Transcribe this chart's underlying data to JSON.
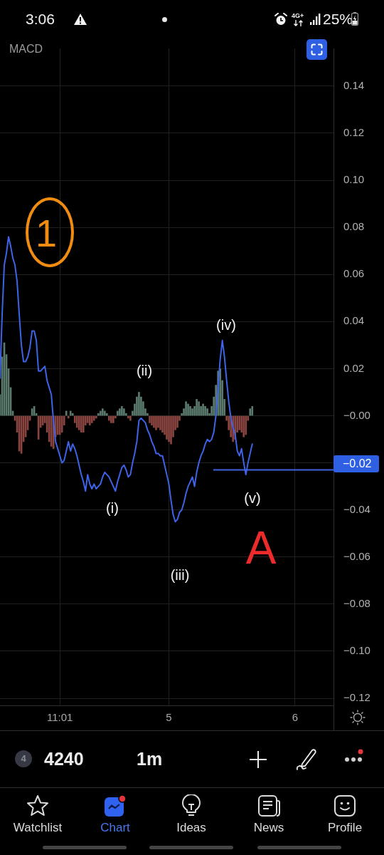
{
  "chart_data": {
    "type": "line",
    "title": "MACD",
    "categories": [
      null,
      null,
      null,
      null,
      null,
      null,
      null,
      null,
      null,
      null,
      null,
      null,
      null,
      null,
      null,
      null,
      null,
      null,
      null,
      null,
      null,
      null,
      null,
      null,
      null,
      null,
      null,
      null,
      "11:01",
      null,
      null,
      null,
      null,
      null,
      null,
      null,
      null,
      null,
      null,
      null,
      null,
      null,
      null,
      null,
      null,
      null,
      null,
      null,
      null,
      null,
      null,
      null,
      null,
      null,
      null,
      null,
      null,
      null,
      null,
      null,
      null,
      null,
      null,
      null,
      null,
      null,
      null,
      null,
      null,
      null,
      null,
      null,
      null,
      null,
      null,
      null,
      null,
      null,
      null,
      "5",
      null,
      null,
      null,
      null,
      null,
      null,
      null,
      null,
      null,
      null,
      null,
      null,
      null,
      null,
      null,
      null,
      null,
      null,
      null,
      null,
      null,
      null,
      null,
      null,
      null,
      null,
      null,
      null,
      null,
      null,
      null,
      null,
      null,
      null,
      null,
      null,
      null,
      null,
      null,
      null,
      null,
      null,
      null,
      null,
      null,
      null,
      null,
      null,
      null,
      null,
      null,
      null,
      null,
      null,
      null,
      null,
      null,
      null,
      "6",
      null,
      null,
      null,
      null,
      null,
      null,
      null,
      null,
      null,
      null,
      null,
      null,
      null,
      null,
      null,
      null,
      null,
      null
    ],
    "ylim": [
      -0.123,
      0.156
    ],
    "yticks": [
      {
        "value": 0.14,
        "label": "0.14"
      },
      {
        "value": 0.12,
        "label": "0.12"
      },
      {
        "value": 0.1,
        "label": "0.10"
      },
      {
        "value": 0.08,
        "label": "0.08"
      },
      {
        "value": 0.06,
        "label": "0.06"
      },
      {
        "value": 0.04,
        "label": "0.04"
      },
      {
        "value": 0.02,
        "label": "0.02"
      },
      {
        "value": 0,
        "label": "−0.00"
      },
      {
        "value": -0.02,
        "label": null
      },
      {
        "value": -0.04,
        "label": "−0.04"
      },
      {
        "value": -0.06,
        "label": "−0.06"
      },
      {
        "value": -0.08,
        "label": "−0.08"
      },
      {
        "value": -0.1,
        "label": "−0.10"
      },
      {
        "value": -0.12,
        "label": "−0.12"
      }
    ],
    "grid": true,
    "marker": "none",
    "series": [
      {
        "type": "bar",
        "values": [
          0.009,
          0.025,
          0.031,
          0.026,
          0.02,
          0.012,
          0.002,
          -0.002,
          -0.007,
          -0.015,
          -0.016,
          -0.011,
          -0.009,
          -0.006,
          -0.002,
          0.003,
          0.004,
          0.001,
          -0.01,
          -0.005,
          -0.004,
          -0.003,
          -0.007,
          -0.011,
          -0.013,
          -0.014,
          -0.009,
          -0.008,
          -0.008,
          -0.007,
          -0.004,
          0.002,
          -0.001,
          0.002,
          0.001,
          -0.003,
          -0.005,
          -0.006,
          -0.007,
          -0.007,
          -0.004,
          -0.003,
          -0.004,
          -0.003,
          -0.002,
          -0.001,
          0.001,
          0.002,
          0.003,
          0.002,
          0.001,
          -0.002,
          -0.003,
          -0.003,
          -0.001,
          0.002,
          0.003,
          0.004,
          0.003,
          0.001,
          -0.001,
          -0.002,
          0.002,
          0.005,
          0.008,
          0.01,
          0.008,
          0.006,
          0.003,
          0.001,
          -0.003,
          -0.004,
          -0.005,
          -0.006,
          -0.005,
          -0.006,
          -0.007,
          -0.008,
          -0.01,
          -0.011,
          -0.012,
          -0.009,
          -0.006,
          -0.005,
          -0.002,
          0.001,
          0.003,
          0.006,
          0.005,
          0.004,
          0.003,
          0.004,
          0.007,
          0.006,
          0.004,
          0.005,
          0.004,
          0.003,
          0.001,
          0.004,
          0.008,
          0.013,
          0.019,
          0.02,
          0.015,
          0.007,
          -0.002,
          -0.006,
          -0.009,
          -0.011,
          -0.01,
          -0.007,
          -0.006,
          -0.007,
          -0.009,
          -0.008,
          -0.002,
          0.003,
          0.004,
          null,
          null,
          null,
          null,
          null,
          null,
          null,
          null,
          null,
          null,
          null,
          null,
          null,
          null,
          null,
          null,
          null,
          null,
          null,
          null,
          null,
          null,
          null,
          null,
          null,
          null,
          null,
          null,
          null,
          null,
          null,
          null,
          null,
          null,
          null,
          null,
          null,
          null
        ],
        "colors": [
          "#5b7a6e",
          "#5b7a6e",
          "#5b7a6e",
          "#5b7a6e",
          "#5b7a6e",
          "#5b7a6e",
          "#5b7a6e",
          "#8a4540",
          "#8a4540",
          "#8a4540",
          "#8a4540",
          "#8a4540",
          "#8a4540",
          "#8a4540",
          "#8a4540",
          "#5b7a6e",
          "#5b7a6e",
          "#5b7a6e",
          "#8a4540",
          "#8a4540",
          "#8a4540",
          "#8a4540",
          "#8a4540",
          "#8a4540",
          "#8a4540",
          "#8a4540",
          "#8a4540",
          "#8a4540",
          "#8a4540",
          "#8a4540",
          "#8a4540",
          "#5b7a6e",
          "#8a4540",
          "#5b7a6e",
          "#5b7a6e",
          "#8a4540",
          "#8a4540",
          "#8a4540",
          "#8a4540",
          "#8a4540",
          "#8a4540",
          "#8a4540",
          "#8a4540",
          "#8a4540",
          "#8a4540",
          "#8a4540",
          "#5b7a6e",
          "#5b7a6e",
          "#5b7a6e",
          "#5b7a6e",
          "#5b7a6e",
          "#8a4540",
          "#8a4540",
          "#8a4540",
          "#8a4540",
          "#5b7a6e",
          "#5b7a6e",
          "#5b7a6e",
          "#5b7a6e",
          "#5b7a6e",
          "#8a4540",
          "#8a4540",
          "#5b7a6e",
          "#5b7a6e",
          "#5b7a6e",
          "#5b7a6e",
          "#5b7a6e",
          "#5b7a6e",
          "#5b7a6e",
          "#5b7a6e",
          "#8a4540",
          "#8a4540",
          "#8a4540",
          "#8a4540",
          "#8a4540",
          "#8a4540",
          "#8a4540",
          "#8a4540",
          "#8a4540",
          "#8a4540",
          "#8a4540",
          "#8a4540",
          "#8a4540",
          "#8a4540",
          "#8a4540",
          "#5b7a6e",
          "#5b7a6e",
          "#5b7a6e",
          "#5b7a6e",
          "#5b7a6e",
          "#5b7a6e",
          "#5b7a6e",
          "#5b7a6e",
          "#5b7a6e",
          "#5b7a6e",
          "#5b7a6e",
          "#5b7a6e",
          "#5b7a6e",
          "#5b7a6e",
          "#5b7a6e",
          "#5b7a6e",
          "#5b7a6e",
          "#5b7a6e",
          "#5b7a6e",
          "#5b7a6e",
          "#5b7a6e",
          "#8a4540",
          "#8a4540",
          "#8a4540",
          "#8a4540",
          "#8a4540",
          "#8a4540",
          "#8a4540",
          "#8a4540",
          "#8a4540",
          "#8a4540",
          "#8a4540",
          "#5b7a6e",
          "#5b7a6e",
          null,
          null,
          null,
          null,
          null,
          null,
          null,
          null,
          null,
          null,
          null,
          null,
          null,
          null,
          null,
          null,
          null,
          null,
          null,
          null,
          null,
          null,
          null,
          null,
          null,
          null,
          null,
          null,
          null,
          null,
          null,
          null,
          null,
          null,
          null,
          null,
          null,
          null
        ]
      },
      {
        "color": "#3e63e6",
        "values": [
          0.016,
          0.043,
          0.064,
          0.069,
          0.076,
          0.072,
          0.067,
          0.064,
          0.057,
          0.043,
          0.03,
          0.023,
          0.023,
          0.025,
          0.029,
          0.036,
          0.036,
          0.032,
          0.019,
          0.019,
          0.02,
          0.021,
          0.015,
          0.012,
          0.009,
          -0.002,
          -0.011,
          -0.014,
          -0.017,
          -0.02,
          -0.019,
          -0.015,
          -0.011,
          -0.015,
          -0.012,
          -0.014,
          -0.017,
          -0.021,
          -0.025,
          -0.028,
          -0.032,
          -0.025,
          -0.029,
          -0.031,
          -0.029,
          -0.031,
          -0.03,
          -0.029,
          -0.026,
          -0.024,
          -0.025,
          -0.026,
          -0.028,
          -0.03,
          -0.032,
          -0.028,
          -0.025,
          -0.022,
          -0.021,
          -0.023,
          -0.026,
          -0.025,
          -0.02,
          -0.016,
          -0.011,
          -0.002,
          -0.001,
          -0.002,
          -0.003,
          -0.006,
          -0.008,
          -0.011,
          -0.013,
          -0.016,
          -0.016,
          -0.017,
          -0.017,
          -0.021,
          -0.025,
          -0.029,
          -0.036,
          -0.042,
          -0.045,
          -0.044,
          -0.041,
          -0.04,
          -0.037,
          -0.033,
          -0.03,
          -0.028,
          -0.026,
          -0.03,
          -0.024,
          -0.02,
          -0.017,
          -0.015,
          -0.012,
          -0.01,
          -0.011,
          -0.01,
          -0.007,
          0.0,
          0.012,
          0.024,
          0.032,
          0.025,
          0.015,
          0.006,
          -0.001,
          -0.005,
          -0.008,
          -0.015,
          -0.017,
          -0.014,
          -0.02,
          -0.025,
          -0.02,
          -0.016,
          -0.012,
          null,
          null,
          null,
          null,
          null,
          null,
          null,
          null,
          null,
          null,
          null,
          null,
          null,
          null,
          null,
          null,
          null,
          null,
          null,
          null,
          null,
          null,
          null,
          null,
          null,
          null,
          null,
          null,
          null,
          null,
          null,
          null,
          null,
          null,
          null,
          null,
          null,
          null
        ]
      },
      {
        "color": "#3e63e6",
        "values": [
          null,
          null,
          null,
          null,
          null,
          null,
          null,
          null,
          null,
          null,
          null,
          null,
          null,
          null,
          null,
          null,
          null,
          null,
          null,
          null,
          null,
          null,
          null,
          null,
          null,
          null,
          null,
          null,
          null,
          null,
          null,
          null,
          null,
          null,
          null,
          null,
          null,
          null,
          null,
          null,
          null,
          null,
          null,
          null,
          null,
          null,
          null,
          null,
          null,
          null,
          null,
          null,
          null,
          null,
          null,
          null,
          null,
          null,
          null,
          null,
          null,
          null,
          null,
          null,
          null,
          null,
          null,
          null,
          null,
          null,
          null,
          null,
          null,
          null,
          null,
          null,
          null,
          null,
          null,
          null,
          null,
          null,
          null,
          null,
          null,
          null,
          null,
          null,
          null,
          null,
          null,
          null,
          null,
          null,
          null,
          null,
          null,
          null,
          null,
          null,
          -0.023,
          -0.023,
          -0.023,
          -0.023,
          -0.023,
          -0.023,
          -0.023,
          -0.023,
          -0.023,
          -0.023,
          -0.023,
          -0.023,
          -0.023,
          -0.023,
          -0.023,
          -0.023,
          -0.023,
          -0.023,
          -0.023,
          -0.023,
          -0.023,
          -0.023,
          -0.023,
          -0.023,
          -0.023,
          -0.023,
          -0.023,
          -0.023,
          -0.023,
          -0.023,
          -0.023,
          -0.023,
          -0.023,
          -0.023,
          -0.023,
          -0.023,
          -0.023,
          -0.023,
          -0.023,
          -0.023,
          -0.023,
          -0.023,
          -0.023,
          -0.023,
          -0.023,
          -0.023,
          -0.023,
          -0.023,
          -0.023,
          -0.023,
          -0.023,
          -0.023,
          -0.023,
          -0.023,
          -0.023,
          -0.023,
          -0.023
        ]
      }
    ],
    "annotations": [
      "(i)",
      "(ii)",
      "(iii)",
      "(iv)",
      "(v)",
      "1",
      "A",
      "−0.02",
      "3:06",
      "4G+",
      "25%",
      "4",
      "4240",
      "1m",
      "Watchlist",
      "Chart",
      "Ideas",
      "News",
      "Profile"
    ]
  }
}
